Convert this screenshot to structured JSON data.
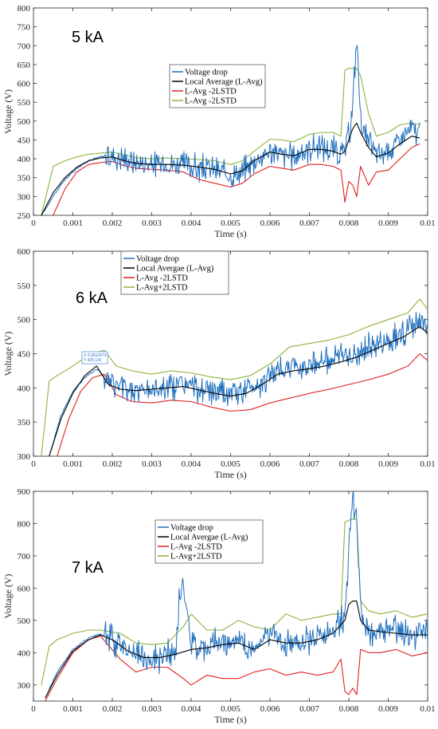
{
  "chart_data": [
    {
      "type": "line",
      "annotation": "5 kA",
      "xlabel": "Time (s)",
      "ylabel": "Voltage (V)",
      "xlim": [
        0,
        0.01
      ],
      "ylim": [
        250,
        800
      ],
      "xticks": [
        0,
        0.001,
        0.002,
        0.003,
        0.004,
        0.005,
        0.006,
        0.007,
        0.008,
        0.009,
        0.01
      ],
      "xtick_labels": [
        "0",
        "0.001",
        "0.002",
        "0.003",
        "0.004",
        "0.005",
        "0.006",
        "0.007",
        "0.008",
        "0.009",
        "0.01"
      ],
      "yticks": [
        250,
        300,
        350,
        400,
        450,
        500,
        550,
        600,
        650,
        700,
        750,
        800
      ],
      "yticks_labels": [
        "250",
        "300",
        "350",
        "400",
        "450",
        "500",
        "550",
        "600",
        "650",
        "700",
        "750",
        "800"
      ],
      "legend": [
        "Voltage drop",
        "Local Average (L-Avg)",
        "L-Avg -2LSTD",
        "L-Avg -2LSTD"
      ],
      "series": [
        {
          "name": "Voltage drop",
          "color": "#1f6fbf",
          "x": [
            0.0002,
            0.0005,
            0.0008,
            0.0011,
            0.0014,
            0.0017,
            0.002,
            0.0023,
            0.0026,
            0.003,
            0.0034,
            0.0038,
            0.0042,
            0.0046,
            0.005,
            0.0053,
            0.0056,
            0.006,
            0.0063,
            0.0066,
            0.007,
            0.0073,
            0.0076,
            0.0078,
            0.0079,
            0.008,
            0.0081,
            0.0082,
            0.0083,
            0.0085,
            0.0087,
            0.009,
            0.0093,
            0.0096,
            0.0098
          ],
          "y": [
            250,
            300,
            345,
            375,
            395,
            405,
            408,
            400,
            390,
            385,
            388,
            385,
            375,
            370,
            355,
            365,
            395,
            420,
            410,
            405,
            430,
            430,
            425,
            410,
            420,
            460,
            540,
            730,
            500,
            440,
            410,
            420,
            450,
            480,
            465
          ]
        },
        {
          "name": "Local Average (L-Avg)",
          "color": "#000000",
          "x": [
            0.0002,
            0.0005,
            0.0008,
            0.0011,
            0.0014,
            0.0017,
            0.002,
            0.0023,
            0.0026,
            0.003,
            0.0034,
            0.0038,
            0.0042,
            0.0046,
            0.005,
            0.0053,
            0.0056,
            0.006,
            0.0063,
            0.0066,
            0.007,
            0.0073,
            0.0076,
            0.0078,
            0.0079,
            0.008,
            0.0081,
            0.0082,
            0.0083,
            0.0085,
            0.0087,
            0.009,
            0.0093,
            0.0096,
            0.0098
          ],
          "y": [
            250,
            310,
            350,
            378,
            395,
            402,
            405,
            395,
            388,
            385,
            385,
            383,
            378,
            372,
            360,
            368,
            395,
            418,
            412,
            408,
            425,
            425,
            420,
            412,
            420,
            450,
            480,
            495,
            470,
            430,
            405,
            415,
            440,
            460,
            455
          ]
        },
        {
          "name": "L-Avg -2LSTD",
          "color": "#e02020",
          "x": [
            0.0005,
            0.0008,
            0.0011,
            0.0014,
            0.0017,
            0.002,
            0.0023,
            0.0026,
            0.003,
            0.0034,
            0.0038,
            0.0042,
            0.0046,
            0.005,
            0.0053,
            0.0056,
            0.006,
            0.0063,
            0.0066,
            0.007,
            0.0073,
            0.0076,
            0.0078,
            0.0079,
            0.008,
            0.0081,
            0.0082,
            0.0083,
            0.0085,
            0.0087,
            0.009,
            0.0093,
            0.0096,
            0.0098
          ],
          "y": [
            250,
            320,
            365,
            385,
            390,
            393,
            382,
            375,
            372,
            370,
            365,
            345,
            335,
            325,
            335,
            360,
            380,
            375,
            370,
            385,
            385,
            380,
            370,
            285,
            340,
            330,
            300,
            380,
            330,
            365,
            370,
            400,
            430,
            440
          ]
        },
        {
          "name": "L-Avg -2LSTD",
          "color": "#8db339",
          "x": [
            0.0002,
            0.0005,
            0.0008,
            0.0011,
            0.0014,
            0.0017,
            0.002,
            0.0023,
            0.0026,
            0.003,
            0.0034,
            0.0038,
            0.0042,
            0.0046,
            0.005,
            0.0053,
            0.0056,
            0.006,
            0.0063,
            0.0066,
            0.007,
            0.0073,
            0.0076,
            0.0078,
            0.0079,
            0.008,
            0.0081,
            0.0082,
            0.0083,
            0.0085,
            0.0087,
            0.009,
            0.0093,
            0.0096,
            0.0098
          ],
          "y": [
            250,
            380,
            395,
            405,
            412,
            415,
            418,
            410,
            403,
            400,
            402,
            400,
            398,
            395,
            385,
            395,
            420,
            452,
            450,
            445,
            465,
            470,
            470,
            460,
            635,
            640,
            640,
            640,
            620,
            520,
            460,
            470,
            490,
            495,
            490
          ]
        }
      ]
    },
    {
      "type": "line",
      "annotation": "6 kA",
      "data_tip": [
        "X 0.0012473",
        "Y 425.116"
      ],
      "xlabel": "Time (s)",
      "ylabel": "Voltage (V)",
      "xlim": [
        0,
        0.01
      ],
      "ylim": [
        300,
        600
      ],
      "xticks": [
        0,
        0.001,
        0.002,
        0.003,
        0.004,
        0.005,
        0.006,
        0.007,
        0.008,
        0.009,
        0.01
      ],
      "xtick_labels": [
        "0",
        "0.001",
        "0.002",
        "0.003",
        "0.004",
        "0.005",
        "0.006",
        "0.007",
        "0.008",
        "0.009",
        "0.01"
      ],
      "yticks": [
        300,
        350,
        400,
        450,
        500,
        550,
        600
      ],
      "yticks_labels": [
        "300",
        "350",
        "400",
        "450",
        "500",
        "550",
        "600"
      ],
      "legend": [
        "Voltage drop",
        "Local Avergae (L-Avg)",
        "L-Avg -2LSTD",
        "L-Avg+2LSTD"
      ],
      "series": [
        {
          "name": "Voltage drop",
          "color": "#1f6fbf",
          "x": [
            0.0004,
            0.0007,
            0.001,
            0.0013,
            0.0016,
            0.0019,
            0.0022,
            0.0026,
            0.003,
            0.0034,
            0.0038,
            0.0042,
            0.0046,
            0.005,
            0.0054,
            0.0058,
            0.0062,
            0.0066,
            0.007,
            0.0074,
            0.0078,
            0.0082,
            0.0086,
            0.009,
            0.0094,
            0.0098,
            0.01
          ],
          "y": [
            300,
            360,
            395,
            415,
            428,
            410,
            400,
            395,
            398,
            402,
            405,
            398,
            392,
            390,
            395,
            410,
            425,
            430,
            435,
            440,
            445,
            450,
            460,
            470,
            480,
            495,
            485
          ]
        },
        {
          "name": "Local Avergae (L-Avg)",
          "color": "#000000",
          "x": [
            0.0004,
            0.0007,
            0.001,
            0.0013,
            0.0016,
            0.0019,
            0.0022,
            0.0026,
            0.003,
            0.0034,
            0.0038,
            0.0042,
            0.0046,
            0.005,
            0.0054,
            0.0058,
            0.0062,
            0.0066,
            0.007,
            0.0074,
            0.0078,
            0.0082,
            0.0086,
            0.009,
            0.0094,
            0.0098,
            0.01
          ],
          "y": [
            300,
            355,
            392,
            418,
            432,
            405,
            398,
            396,
            398,
            400,
            402,
            397,
            392,
            388,
            392,
            405,
            420,
            425,
            428,
            432,
            438,
            445,
            455,
            465,
            475,
            490,
            480
          ]
        },
        {
          "name": "L-Avg -2LSTD",
          "color": "#e02020",
          "x": [
            0.0006,
            0.0009,
            0.0012,
            0.0015,
            0.0018,
            0.0021,
            0.0025,
            0.003,
            0.0035,
            0.004,
            0.0045,
            0.005,
            0.0055,
            0.006,
            0.0065,
            0.007,
            0.0075,
            0.008,
            0.0085,
            0.009,
            0.0095,
            0.0098,
            0.01
          ],
          "y": [
            300,
            355,
            395,
            415,
            420,
            390,
            380,
            378,
            382,
            380,
            372,
            366,
            368,
            378,
            385,
            392,
            398,
            405,
            412,
            420,
            432,
            450,
            440
          ]
        },
        {
          "name": "L-Avg+2LSTD",
          "color": "#8db339",
          "x": [
            0.0002,
            0.0004,
            0.0006,
            0.0009,
            0.0012,
            0.0015,
            0.0018,
            0.0021,
            0.0025,
            0.003,
            0.0035,
            0.004,
            0.0045,
            0.005,
            0.0055,
            0.006,
            0.0065,
            0.007,
            0.0075,
            0.008,
            0.0085,
            0.009,
            0.0095,
            0.0098,
            0.01
          ],
          "y": [
            300,
            410,
            418,
            428,
            440,
            450,
            455,
            432,
            425,
            420,
            425,
            422,
            416,
            412,
            418,
            435,
            460,
            465,
            470,
            478,
            490,
            500,
            510,
            530,
            515
          ]
        }
      ]
    },
    {
      "type": "line",
      "annotation": "7 kA",
      "xlabel": "Time (s)",
      "ylabel": "Voltage (V)",
      "xlim": [
        0,
        0.01
      ],
      "ylim": [
        250,
        900
      ],
      "xticks": [
        0,
        0.001,
        0.002,
        0.003,
        0.004,
        0.005,
        0.006,
        0.007,
        0.008,
        0.009,
        0.01
      ],
      "xtick_labels": [
        "0",
        "0.001",
        "0.002",
        "0.003",
        "0.004",
        "0.005",
        "0.006",
        "0.007",
        "0.008",
        "0.009",
        "0.01"
      ],
      "yticks": [
        300,
        400,
        500,
        600,
        700,
        800,
        900
      ],
      "yticks_labels": [
        "300",
        "400",
        "500",
        "600",
        "700",
        "800",
        "900"
      ],
      "legend": [
        "Voltage drop",
        "Local Avergae (L-Avg)",
        "L-Avg -2LSTD",
        "L-Avg+2LSTD"
      ],
      "series": [
        {
          "name": "Voltage drop",
          "color": "#1f6fbf",
          "x": [
            0.0003,
            0.0006,
            0.001,
            0.0014,
            0.0017,
            0.002,
            0.0024,
            0.0028,
            0.0032,
            0.0036,
            0.0037,
            0.0038,
            0.004,
            0.0044,
            0.0048,
            0.0052,
            0.0056,
            0.006,
            0.0064,
            0.0068,
            0.0072,
            0.0076,
            0.0079,
            0.008,
            0.0081,
            0.0082,
            0.0083,
            0.0085,
            0.0088,
            0.0092,
            0.0096,
            0.01
          ],
          "y": [
            260,
            340,
            410,
            445,
            458,
            440,
            410,
            385,
            385,
            400,
            560,
            610,
            430,
            420,
            440,
            430,
            410,
            470,
            420,
            440,
            450,
            470,
            520,
            700,
            880,
            810,
            520,
            470,
            460,
            470,
            450,
            460
          ]
        },
        {
          "name": "Local Avergae (L-Avg)",
          "color": "#000000",
          "x": [
            0.0003,
            0.0006,
            0.001,
            0.0014,
            0.0017,
            0.002,
            0.0024,
            0.0028,
            0.0032,
            0.0036,
            0.004,
            0.0044,
            0.0048,
            0.0052,
            0.0056,
            0.006,
            0.0064,
            0.0068,
            0.0072,
            0.0076,
            0.0079,
            0.008,
            0.0081,
            0.0082,
            0.0083,
            0.0085,
            0.0088,
            0.0092,
            0.0096,
            0.01
          ],
          "y": [
            260,
            330,
            405,
            440,
            455,
            440,
            405,
            385,
            385,
            395,
            410,
            415,
            425,
            430,
            410,
            440,
            430,
            430,
            440,
            460,
            500,
            550,
            560,
            560,
            500,
            470,
            465,
            460,
            455,
            455
          ]
        },
        {
          "name": "L-Avg -2LSTD",
          "color": "#e02020",
          "x": [
            0.0003,
            0.0006,
            0.001,
            0.0014,
            0.0017,
            0.0022,
            0.0026,
            0.003,
            0.0034,
            0.0038,
            0.004,
            0.0044,
            0.0048,
            0.0052,
            0.0056,
            0.006,
            0.0064,
            0.0068,
            0.0072,
            0.0076,
            0.0078,
            0.0079,
            0.008,
            0.0081,
            0.0082,
            0.0083,
            0.0085,
            0.0088,
            0.0092,
            0.0096,
            0.01
          ],
          "y": [
            250,
            320,
            400,
            440,
            452,
            380,
            340,
            355,
            355,
            320,
            300,
            330,
            320,
            320,
            340,
            350,
            330,
            340,
            330,
            340,
            380,
            280,
            270,
            290,
            270,
            410,
            400,
            400,
            410,
            390,
            400
          ]
        },
        {
          "name": "L-Avg+2LSTD",
          "color": "#8db339",
          "x": [
            0.0002,
            0.0004,
            0.0006,
            0.001,
            0.0014,
            0.0017,
            0.0022,
            0.0026,
            0.003,
            0.0034,
            0.0038,
            0.004,
            0.0044,
            0.0048,
            0.0052,
            0.0056,
            0.006,
            0.0064,
            0.0068,
            0.0072,
            0.0076,
            0.0078,
            0.0079,
            0.008,
            0.0081,
            0.0082,
            0.0083,
            0.0085,
            0.0088,
            0.0092,
            0.0096,
            0.01
          ],
          "y": [
            300,
            420,
            440,
            460,
            470,
            470,
            460,
            430,
            425,
            430,
            480,
            520,
            470,
            470,
            500,
            480,
            470,
            520,
            500,
            510,
            520,
            520,
            805,
            810,
            815,
            812,
            560,
            530,
            520,
            530,
            510,
            520
          ]
        }
      ]
    }
  ]
}
